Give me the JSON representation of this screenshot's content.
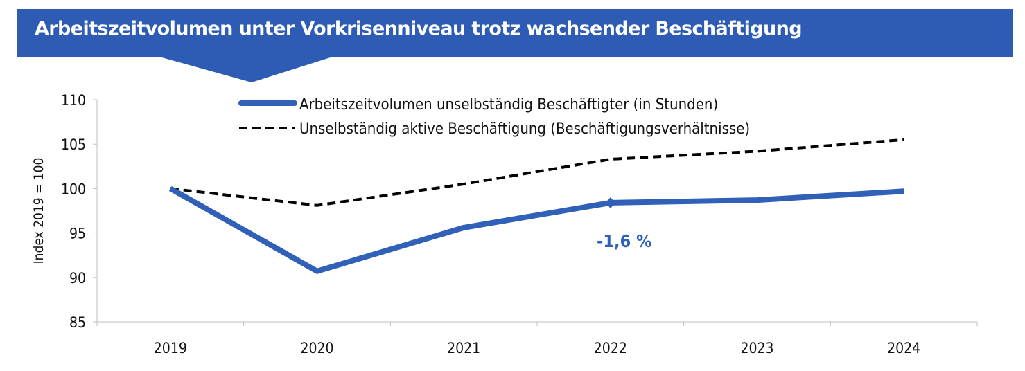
{
  "title": "Arbeitszeitvolumen unter Vorkrisenniveau trotz wachsender Beschäftigung",
  "colors": {
    "banner": "#2E5CB4",
    "solid_series": "#3060B8",
    "dashed_series": "#000000",
    "annotation": "#3060B8"
  },
  "chart_data": {
    "type": "line",
    "title": "Arbeitszeitvolumen unter Vorkrisenniveau trotz wachsender Beschäftigung",
    "ylabel": "Index 2019 = 100",
    "xlabel": "",
    "categories": [
      "2019",
      "2020",
      "2021",
      "2022",
      "2023",
      "2024"
    ],
    "ylim": [
      85,
      110
    ],
    "yticks": [
      85,
      90,
      95,
      100,
      105,
      110
    ],
    "grid": false,
    "legend_position": "top",
    "series": [
      {
        "name": "Arbeitszeitvolumen unselbständig Beschäftigter (in Stunden)",
        "style": "solid",
        "values": [
          100,
          90.7,
          95.6,
          98.4,
          98.7,
          99.7
        ]
      },
      {
        "name": "Unselbständig aktive Beschäftigung (Beschäftigungsverhältnisse)",
        "style": "dashed",
        "values": [
          100,
          98.1,
          100.5,
          103.3,
          104.2,
          105.5
        ]
      }
    ],
    "annotations": [
      {
        "text": "-1,6 %",
        "category": "2022"
      }
    ]
  }
}
